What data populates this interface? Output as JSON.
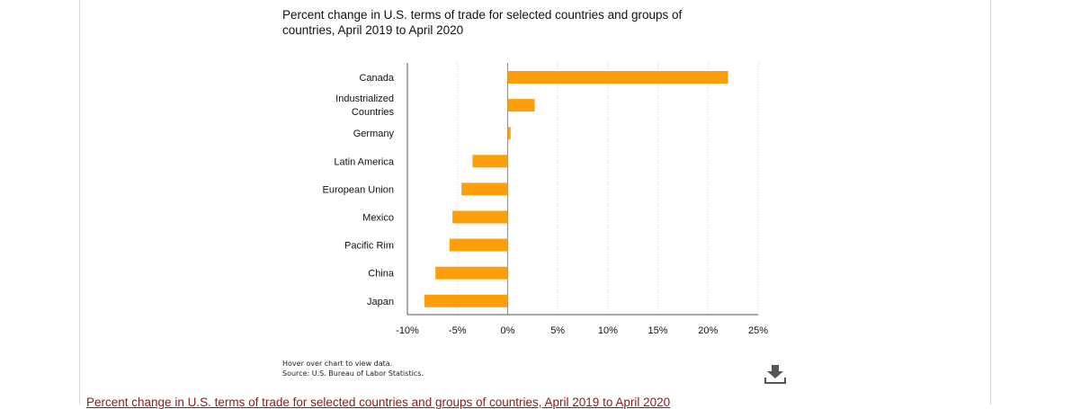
{
  "chart_data": {
    "type": "bar",
    "orientation": "horizontal",
    "title": "Percent change in U.S. terms of trade for selected countries and groups of countries, April 2019 to April 2020",
    "categories": [
      "Canada",
      "Industrialized Countries",
      "Germany",
      "Latin America",
      "European Union",
      "Mexico",
      "Pacific Rim",
      "China",
      "Japan"
    ],
    "values": [
      22.0,
      2.7,
      0.3,
      -3.5,
      -4.6,
      -5.5,
      -5.8,
      -7.2,
      -8.3
    ],
    "xlim": [
      -10,
      25
    ],
    "xticks": [
      "-10%",
      "-5%",
      "0%",
      "5%",
      "10%",
      "15%",
      "20%",
      "25%"
    ],
    "grid": "vertical dotted",
    "bar_color": "#ff9e0b"
  },
  "notes": {
    "hover": "Hover over chart to view data.",
    "source": "Source: U.S. Bureau of Labor Statistics."
  },
  "download_icon": "download-icon",
  "bottom_link": "Percent change in U.S. terms of trade for selected countries and groups of countries, April 2019 to April 2020"
}
